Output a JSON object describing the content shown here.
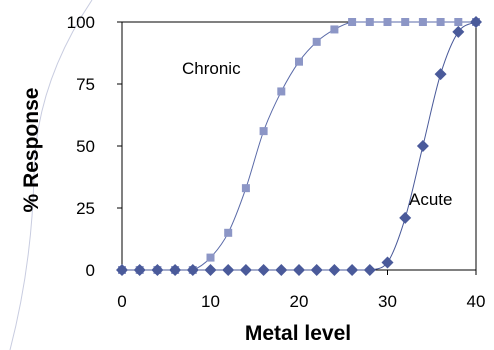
{
  "chart_data": {
    "type": "scatter",
    "title": "",
    "xlabel": "Metal level",
    "ylabel": "% Response",
    "xlim": [
      0,
      40
    ],
    "ylim": [
      0,
      100
    ],
    "x_ticks": [
      0,
      10,
      20,
      30,
      40
    ],
    "y_ticks": [
      0,
      25,
      50,
      75,
      100
    ],
    "grid": false,
    "legend": "none",
    "series": [
      {
        "name": "Chronic",
        "marker": "square",
        "color": "#8c96c6",
        "line_color": "#5a6aa8",
        "x": [
          0,
          2,
          4,
          6,
          8,
          10,
          12,
          14,
          16,
          18,
          20,
          22,
          24,
          26,
          28,
          30,
          32,
          34,
          36,
          38,
          40
        ],
        "y": [
          0,
          0,
          0,
          0,
          0,
          5,
          15,
          33,
          56,
          72,
          84,
          92,
          97,
          100,
          100,
          100,
          100,
          100,
          100,
          100,
          100
        ]
      },
      {
        "name": "Acute",
        "marker": "diamond",
        "color": "#4a5a9a",
        "line_color": "#4a5a9a",
        "x": [
          0,
          2,
          4,
          6,
          8,
          10,
          12,
          14,
          16,
          18,
          20,
          22,
          24,
          26,
          28,
          30,
          32,
          34,
          36,
          38,
          40
        ],
        "y": [
          0,
          0,
          0,
          0,
          0,
          0,
          0,
          0,
          0,
          0,
          0,
          0,
          0,
          0,
          0,
          3,
          21,
          50,
          79,
          96,
          100
        ]
      }
    ],
    "annotations": [
      "Chronic",
      "Acute"
    ]
  }
}
